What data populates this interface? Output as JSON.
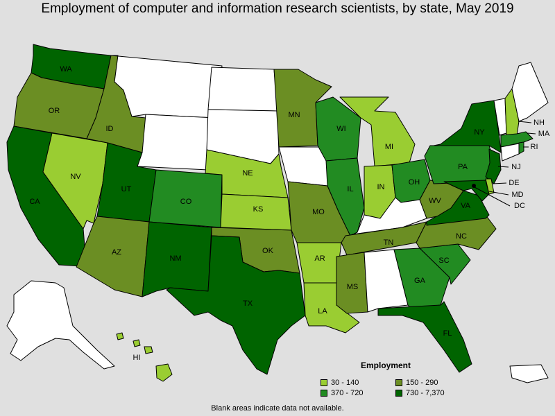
{
  "title": "Employment of computer and information research scientists, by state, May 2019",
  "colors": {
    "background": "#e0e0e0",
    "no_data": "#ffffff",
    "tier1": "#9acd32",
    "tier2": "#6b8e23",
    "tier3": "#228b22",
    "tier4": "#006400"
  },
  "legend": {
    "title": "Employment",
    "items": [
      {
        "label": "30 - 140",
        "color": "#9acd32"
      },
      {
        "label": "150 - 290",
        "color": "#6b8e23"
      },
      {
        "label": "370 - 720",
        "color": "#228b22"
      },
      {
        "label": "730 - 7,370",
        "color": "#006400"
      }
    ]
  },
  "footnote": "Blank areas indicate data not available.",
  "state_labels": {
    "WA": "WA",
    "OR": "OR",
    "CA": "CA",
    "NV": "NV",
    "ID": "ID",
    "UT": "UT",
    "AZ": "AZ",
    "NM": "NM",
    "CO": "CO",
    "TX": "TX",
    "OK": "OK",
    "KS": "KS",
    "NE": "NE",
    "MN": "MN",
    "MO": "MO",
    "AR": "AR",
    "LA": "LA",
    "WI": "WI",
    "IL": "IL",
    "MS": "MS",
    "MI": "MI",
    "IN": "IN",
    "OH": "OH",
    "TN": "TN",
    "GA": "GA",
    "FL": "FL",
    "SC": "SC",
    "NC": "NC",
    "VA": "VA",
    "WV": "WV",
    "PA": "PA",
    "NY": "NY",
    "NJ": "NJ",
    "DE": "DE",
    "MD": "MD",
    "DC": "DC",
    "NH": "NH",
    "MA": "MA",
    "RI": "RI",
    "HI": "HI"
  },
  "map_data": {
    "tier1": [
      "NV",
      "NE",
      "KS",
      "AR",
      "LA",
      "MI",
      "IN",
      "NH",
      "DE",
      "HI"
    ],
    "tier2": [
      "OR",
      "ID",
      "AZ",
      "MN",
      "MO",
      "OK",
      "MS",
      "TN",
      "NC",
      "WV"
    ],
    "tier3": [
      "CO",
      "WI",
      "IL",
      "OH",
      "GA",
      "SC",
      "PA",
      "MA",
      "RI"
    ],
    "tier4": [
      "WA",
      "CA",
      "UT",
      "NM",
      "TX",
      "FL",
      "VA",
      "NY",
      "NJ",
      "MD",
      "DC"
    ],
    "no_data": [
      "MT",
      "WY",
      "ND",
      "SD",
      "IA",
      "KY",
      "AL",
      "ME",
      "VT",
      "CT",
      "AK",
      "PR"
    ]
  }
}
